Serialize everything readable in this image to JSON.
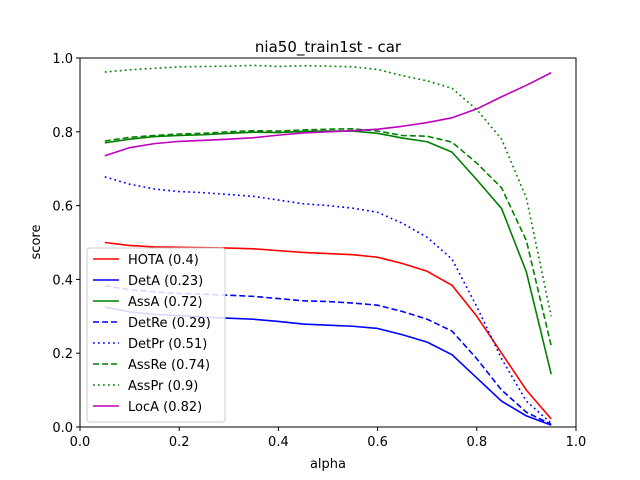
{
  "chart_data": {
    "type": "line",
    "title": "nia50_train1st - car",
    "xlabel": "alpha",
    "ylabel": "score",
    "xlim": [
      0.0,
      1.0
    ],
    "ylim": [
      0.0,
      1.0
    ],
    "xticks": [
      "0.0",
      "0.2",
      "0.4",
      "0.6",
      "0.8",
      "1.0"
    ],
    "yticks": [
      "0.0",
      "0.2",
      "0.4",
      "0.6",
      "0.8",
      "1.0"
    ],
    "grid": false,
    "legend_position": "lower-left",
    "x": [
      0.05,
      0.1,
      0.15,
      0.2,
      0.25,
      0.3,
      0.35,
      0.4,
      0.45,
      0.5,
      0.55,
      0.6,
      0.65,
      0.7,
      0.75,
      0.8,
      0.85,
      0.9,
      0.95
    ],
    "series": [
      {
        "name": "HOTA (0.4)",
        "color": "#ff0000",
        "dash": "solid",
        "values": [
          0.5,
          0.492,
          0.488,
          0.487,
          0.486,
          0.485,
          0.483,
          0.478,
          0.473,
          0.47,
          0.467,
          0.46,
          0.443,
          0.422,
          0.384,
          0.3,
          0.2,
          0.1,
          0.022
        ]
      },
      {
        "name": "DetA (0.23)",
        "color": "#0000ff",
        "dash": "solid",
        "values": [
          0.325,
          0.312,
          0.305,
          0.302,
          0.298,
          0.295,
          0.292,
          0.286,
          0.279,
          0.276,
          0.273,
          0.267,
          0.25,
          0.23,
          0.196,
          0.133,
          0.07,
          0.03,
          0.005
        ]
      },
      {
        "name": "AssA (0.72)",
        "color": "#008000",
        "dash": "solid",
        "values": [
          0.77,
          0.78,
          0.787,
          0.79,
          0.792,
          0.796,
          0.799,
          0.798,
          0.801,
          0.802,
          0.802,
          0.796,
          0.783,
          0.773,
          0.745,
          0.67,
          0.592,
          0.42,
          0.143
        ]
      },
      {
        "name": "DetRe (0.29)",
        "color": "#0000ff",
        "dash": "dashed",
        "values": [
          0.383,
          0.372,
          0.366,
          0.362,
          0.36,
          0.357,
          0.354,
          0.348,
          0.342,
          0.34,
          0.336,
          0.33,
          0.313,
          0.292,
          0.26,
          0.185,
          0.1,
          0.04,
          0.007
        ]
      },
      {
        "name": "DetPr (0.51)",
        "color": "#0000ff",
        "dash": "dotted",
        "values": [
          0.678,
          0.658,
          0.645,
          0.638,
          0.635,
          0.63,
          0.625,
          0.615,
          0.605,
          0.6,
          0.593,
          0.582,
          0.552,
          0.514,
          0.455,
          0.326,
          0.185,
          0.07,
          0.01
        ]
      },
      {
        "name": "AssRe (0.74)",
        "color": "#008000",
        "dash": "dashed",
        "values": [
          0.775,
          0.785,
          0.79,
          0.794,
          0.796,
          0.8,
          0.803,
          0.802,
          0.805,
          0.807,
          0.808,
          0.802,
          0.79,
          0.788,
          0.772,
          0.715,
          0.648,
          0.505,
          0.22
        ]
      },
      {
        "name": "AssPr (0.9)",
        "color": "#008000",
        "dash": "dotted",
        "values": [
          0.962,
          0.968,
          0.972,
          0.976,
          0.977,
          0.978,
          0.98,
          0.977,
          0.979,
          0.978,
          0.976,
          0.969,
          0.952,
          0.938,
          0.918,
          0.86,
          0.78,
          0.62,
          0.3
        ]
      },
      {
        "name": "LocA (0.82)",
        "color": "#bf00bf",
        "dash": "solid",
        "values": [
          0.735,
          0.757,
          0.768,
          0.774,
          0.777,
          0.78,
          0.784,
          0.791,
          0.797,
          0.8,
          0.803,
          0.807,
          0.815,
          0.825,
          0.838,
          0.862,
          0.895,
          0.926,
          0.96
        ]
      }
    ]
  }
}
